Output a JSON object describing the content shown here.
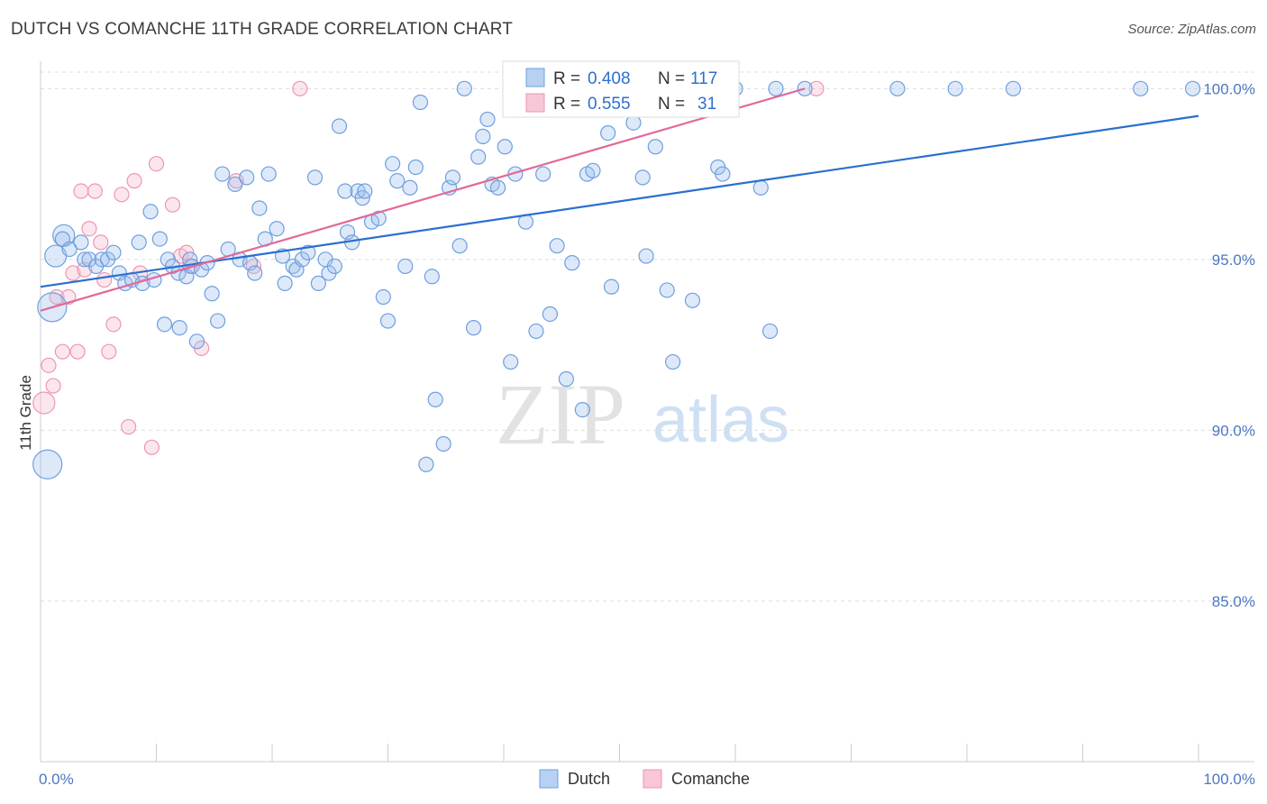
{
  "title": "DUTCH VS COMANCHE 11TH GRADE CORRELATION CHART",
  "source": "Source: ZipAtlas.com",
  "watermark": {
    "zip": "ZIP",
    "atlas": "atlas"
  },
  "colors": {
    "dutch_fill": "rgba(157,193,238,0.35)",
    "dutch_stroke": "#6f9fdd",
    "dutch_line": "#2a6fcf",
    "comanche_fill": "rgba(245,182,202,0.35)",
    "comanche_stroke": "#ee96b2",
    "comanche_line": "#e2699a",
    "grid": "#dddddd",
    "axis_text": "#4a78c2"
  },
  "legend_box": {
    "rows": [
      {
        "r_label": "R =",
        "r_value": "0.408",
        "n_label": "N =",
        "n_value": "117",
        "series": "Dutch"
      },
      {
        "r_label": "R =",
        "r_value": "0.555",
        "n_label": "N =",
        "n_value": "31",
        "series": "Comanche"
      }
    ]
  },
  "bottom_legend": [
    "Dutch",
    "Comanche"
  ],
  "chart_data": {
    "type": "scatter",
    "title": "DUTCH VS COMANCHE 11TH GRADE CORRELATION CHART",
    "xlabel": "",
    "ylabel": "11th Grade",
    "xlim": [
      0,
      100
    ],
    "ylim": [
      80.3,
      100.8
    ],
    "x_tick_labels": [
      {
        "value": 0,
        "label": "0.0%"
      },
      {
        "value": 100,
        "label": "100.0%"
      }
    ],
    "y_tick_labels": [
      {
        "value": 100,
        "label": "100.0%"
      },
      {
        "value": 95,
        "label": "95.0%"
      },
      {
        "value": 90,
        "label": "90.0%"
      },
      {
        "value": 85,
        "label": "85.0%"
      }
    ],
    "series": [
      {
        "name": "Dutch",
        "R": 0.408,
        "N": 117,
        "trend": {
          "x": [
            0,
            100
          ],
          "y": [
            94.2,
            99.2
          ]
        },
        "points": [
          [
            0.6,
            89.0,
            3
          ],
          [
            1.0,
            93.6,
            3
          ],
          [
            1.3,
            95.1,
            2
          ],
          [
            2.0,
            95.7,
            2
          ],
          [
            1.9,
            95.6,
            1
          ],
          [
            2.5,
            95.3,
            1
          ],
          [
            3.5,
            95.5,
            1
          ],
          [
            3.8,
            95.0,
            1
          ],
          [
            4.2,
            95.0,
            1
          ],
          [
            4.8,
            94.8,
            1
          ],
          [
            5.3,
            95.0,
            1
          ],
          [
            5.8,
            95.0,
            1
          ],
          [
            6.3,
            95.2,
            1
          ],
          [
            6.8,
            94.6,
            1
          ],
          [
            7.3,
            94.3,
            1
          ],
          [
            7.9,
            94.4,
            1
          ],
          [
            8.5,
            95.5,
            1
          ],
          [
            8.8,
            94.3,
            1
          ],
          [
            9.5,
            96.4,
            1
          ],
          [
            9.8,
            94.4,
            1
          ],
          [
            10.3,
            95.6,
            1
          ],
          [
            10.7,
            93.1,
            1
          ],
          [
            11.0,
            95.0,
            1
          ],
          [
            11.4,
            94.8,
            1
          ],
          [
            11.9,
            94.6,
            1
          ],
          [
            12.0,
            93.0,
            1
          ],
          [
            12.6,
            94.5,
            1
          ],
          [
            12.9,
            95.0,
            1
          ],
          [
            13.1,
            94.8,
            1
          ],
          [
            13.5,
            92.6,
            1
          ],
          [
            13.9,
            94.7,
            1
          ],
          [
            14.4,
            94.9,
            1
          ],
          [
            14.8,
            94.0,
            1
          ],
          [
            15.3,
            93.2,
            1
          ],
          [
            15.7,
            97.5,
            1
          ],
          [
            16.2,
            95.3,
            1
          ],
          [
            16.8,
            97.2,
            1
          ],
          [
            17.2,
            95.0,
            1
          ],
          [
            17.8,
            97.4,
            1
          ],
          [
            18.1,
            94.9,
            1
          ],
          [
            18.5,
            94.6,
            1
          ],
          [
            18.9,
            96.5,
            1
          ],
          [
            19.4,
            95.6,
            1
          ],
          [
            19.7,
            97.5,
            1
          ],
          [
            20.4,
            95.9,
            1
          ],
          [
            20.9,
            95.1,
            1
          ],
          [
            21.1,
            94.3,
            1
          ],
          [
            21.8,
            94.8,
            1
          ],
          [
            22.1,
            94.7,
            1
          ],
          [
            22.6,
            95.0,
            1
          ],
          [
            23.1,
            95.2,
            1
          ],
          [
            23.7,
            97.4,
            1
          ],
          [
            24.0,
            94.3,
            1
          ],
          [
            24.6,
            95.0,
            1
          ],
          [
            24.9,
            94.6,
            1
          ],
          [
            25.4,
            94.8,
            1
          ],
          [
            25.8,
            98.9,
            1
          ],
          [
            26.3,
            97.0,
            1
          ],
          [
            26.5,
            95.8,
            1
          ],
          [
            26.9,
            95.5,
            1
          ],
          [
            27.4,
            97.0,
            1
          ],
          [
            27.8,
            96.8,
            1
          ],
          [
            28.0,
            97.0,
            1
          ],
          [
            28.6,
            96.1,
            1
          ],
          [
            29.2,
            96.2,
            1
          ],
          [
            29.6,
            93.9,
            1
          ],
          [
            30.0,
            93.2,
            1
          ],
          [
            30.4,
            97.8,
            1
          ],
          [
            30.8,
            97.3,
            1
          ],
          [
            31.5,
            94.8,
            1
          ],
          [
            31.9,
            97.1,
            1
          ],
          [
            32.4,
            97.7,
            1
          ],
          [
            32.8,
            99.6,
            1
          ],
          [
            33.3,
            89.0,
            1
          ],
          [
            33.8,
            94.5,
            1
          ],
          [
            34.1,
            90.9,
            1
          ],
          [
            34.8,
            89.6,
            1
          ],
          [
            35.3,
            97.1,
            1
          ],
          [
            35.6,
            97.4,
            1
          ],
          [
            36.2,
            95.4,
            1
          ],
          [
            36.6,
            100.0,
            1
          ],
          [
            37.4,
            93.0,
            1
          ],
          [
            37.8,
            98.0,
            1
          ],
          [
            38.2,
            98.6,
            1
          ],
          [
            38.6,
            99.1,
            1
          ],
          [
            39.0,
            97.2,
            1
          ],
          [
            39.5,
            97.1,
            1
          ],
          [
            40.1,
            98.3,
            1
          ],
          [
            40.6,
            92.0,
            1
          ],
          [
            41.0,
            97.5,
            1
          ],
          [
            41.9,
            96.1,
            1
          ],
          [
            42.8,
            92.9,
            1
          ],
          [
            43.4,
            97.5,
            1
          ],
          [
            44.0,
            93.4,
            1
          ],
          [
            44.6,
            95.4,
            1
          ],
          [
            45.4,
            91.5,
            1
          ],
          [
            45.9,
            94.9,
            1
          ],
          [
            46.8,
            90.6,
            1
          ],
          [
            47.2,
            97.5,
            1
          ],
          [
            47.7,
            97.6,
            1
          ],
          [
            49.0,
            98.7,
            1
          ],
          [
            49.3,
            94.2,
            1
          ],
          [
            50.5,
            100.0,
            1
          ],
          [
            51.2,
            99.0,
            1
          ],
          [
            52.0,
            97.4,
            1
          ],
          [
            52.3,
            95.1,
            1
          ],
          [
            53.1,
            98.3,
            1
          ],
          [
            54.1,
            94.1,
            1
          ],
          [
            54.6,
            92.0,
            1
          ],
          [
            56.3,
            93.8,
            1
          ],
          [
            58.5,
            97.7,
            1
          ],
          [
            58.9,
            97.5,
            1
          ],
          [
            60.0,
            100.0,
            1
          ],
          [
            62.2,
            97.1,
            1
          ],
          [
            63.0,
            92.9,
            1
          ],
          [
            63.5,
            100.0,
            1
          ],
          [
            66.0,
            100.0,
            1
          ],
          [
            74.0,
            100.0,
            1
          ],
          [
            79.0,
            100.0,
            1
          ],
          [
            95.0,
            100.0,
            1
          ],
          [
            99.5,
            100.0,
            1
          ],
          [
            84.0,
            100.0,
            1
          ]
        ]
      },
      {
        "name": "Comanche",
        "R": 0.555,
        "N": 31,
        "trend": {
          "x": [
            0,
            66
          ],
          "y": [
            93.5,
            100.0
          ]
        },
        "points": [
          [
            0.3,
            90.8,
            2
          ],
          [
            0.7,
            91.9,
            1
          ],
          [
            1.1,
            91.3,
            1
          ],
          [
            1.4,
            93.9,
            1
          ],
          [
            1.9,
            92.3,
            1
          ],
          [
            2.4,
            93.9,
            1
          ],
          [
            2.8,
            94.6,
            1
          ],
          [
            3.2,
            92.3,
            1
          ],
          [
            3.5,
            97.0,
            1
          ],
          [
            3.8,
            94.7,
            1
          ],
          [
            4.2,
            95.9,
            1
          ],
          [
            4.7,
            97.0,
            1
          ],
          [
            5.2,
            95.5,
            1
          ],
          [
            5.5,
            94.4,
            1
          ],
          [
            5.9,
            92.3,
            1
          ],
          [
            6.3,
            93.1,
            1
          ],
          [
            7.0,
            96.9,
            1
          ],
          [
            7.6,
            90.1,
            1
          ],
          [
            8.1,
            97.3,
            1
          ],
          [
            8.6,
            94.6,
            1
          ],
          [
            9.6,
            89.5,
            1
          ],
          [
            10.0,
            97.8,
            1
          ],
          [
            11.4,
            96.6,
            1
          ],
          [
            12.1,
            95.1,
            1
          ],
          [
            12.6,
            95.2,
            1
          ],
          [
            12.9,
            94.8,
            1
          ],
          [
            13.9,
            92.4,
            1
          ],
          [
            16.9,
            97.3,
            1
          ],
          [
            18.4,
            94.8,
            1
          ],
          [
            22.4,
            100.0,
            1
          ],
          [
            67.0,
            100.0,
            1
          ]
        ]
      }
    ]
  }
}
